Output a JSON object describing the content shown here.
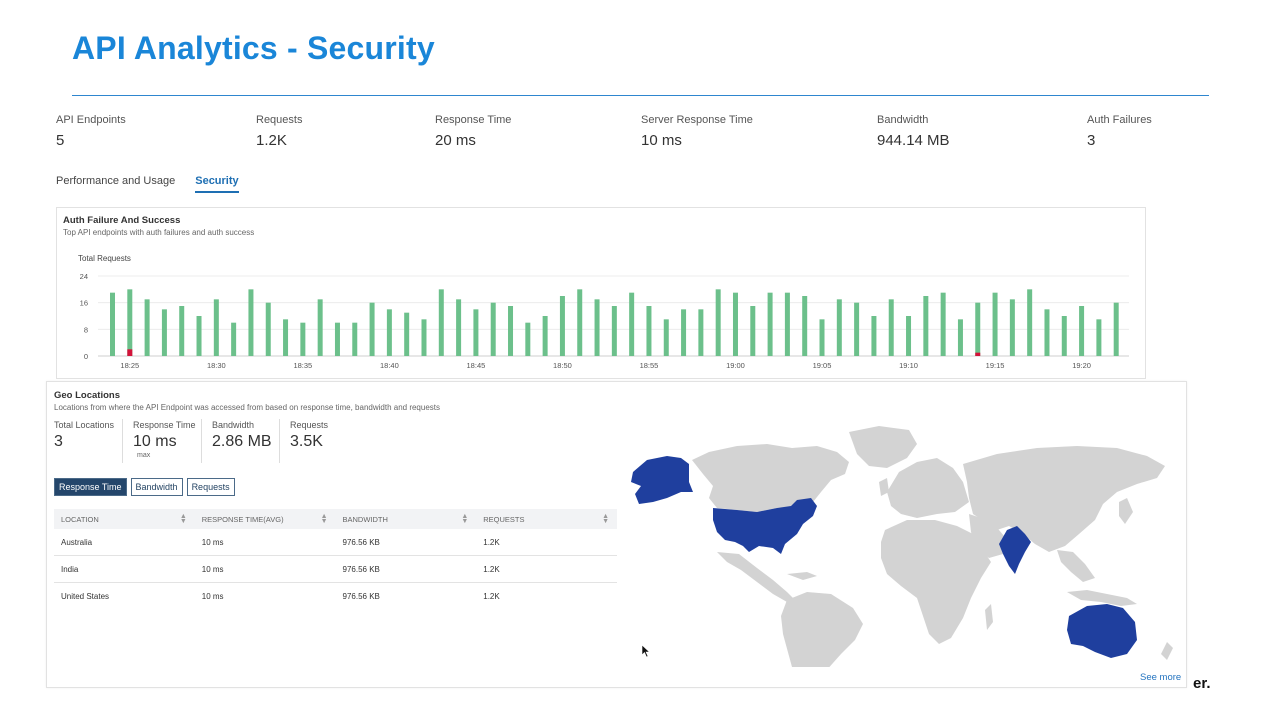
{
  "page": {
    "title": "API Analytics - Security"
  },
  "metrics": [
    {
      "label": "API Endpoints",
      "value": "5"
    },
    {
      "label": "Requests",
      "value": "1.2K"
    },
    {
      "label": "Response Time",
      "value": "20 ms"
    },
    {
      "label": "Server Response Time",
      "value": "10 ms"
    },
    {
      "label": "Bandwidth",
      "value": "944.14 MB"
    },
    {
      "label": "Auth Failures",
      "value": "3"
    }
  ],
  "tabs": [
    {
      "label": "Performance and Usage",
      "active": false
    },
    {
      "label": "Security",
      "active": true
    }
  ],
  "auth_chart": {
    "title": "Auth Failure And Success",
    "subtitle": "Top API endpoints with auth failures and auth success",
    "ylabel": "Total Requests"
  },
  "chart_data": {
    "type": "bar",
    "stacked": true,
    "ylim": [
      0,
      24
    ],
    "yticks": [
      0,
      8,
      16,
      24
    ],
    "xtick_labels": [
      "18:25",
      "18:30",
      "18:35",
      "18:40",
      "18:45",
      "18:50",
      "18:55",
      "19:00",
      "19:05",
      "19:10",
      "19:15",
      "19:20"
    ],
    "bar_interval_minutes": 1,
    "first_bar_time": "18:24",
    "series": [
      {
        "key": "success",
        "color": "#6cc08b",
        "values": [
          19,
          20,
          17,
          14,
          15,
          12,
          17,
          10,
          20,
          16,
          11,
          10,
          17,
          10,
          10,
          16,
          14,
          13,
          11,
          20,
          17,
          14,
          16,
          15,
          10,
          12,
          18,
          20,
          17,
          15,
          19,
          15,
          11,
          14,
          14,
          20,
          19,
          15,
          19,
          19,
          18,
          11,
          17,
          16,
          12,
          17,
          12,
          18,
          19,
          11,
          16,
          19,
          17,
          20,
          14,
          12,
          15,
          11,
          16
        ]
      },
      {
        "key": "failure",
        "color": "#d3133a",
        "values": [
          0,
          2,
          0,
          0,
          0,
          0,
          0,
          0,
          0,
          0,
          0,
          0,
          0,
          0,
          0,
          0,
          0,
          0,
          0,
          0,
          0,
          0,
          0,
          0,
          0,
          0,
          0,
          0,
          0,
          0,
          0,
          0,
          0,
          0,
          0,
          0,
          0,
          0,
          0,
          0,
          0,
          0,
          0,
          0,
          0,
          0,
          0,
          0,
          0,
          0,
          1,
          0,
          0,
          0,
          0,
          0,
          0,
          0,
          0
        ]
      }
    ]
  },
  "geo": {
    "title": "Geo Locations",
    "subtitle": "Locations from where the API Endpoint was accessed from based on response time, bandwidth and requests",
    "stats": [
      {
        "label": "Total Locations",
        "value": "3",
        "note": ""
      },
      {
        "label": "Response Time",
        "value": "10 ms",
        "note": "max"
      },
      {
        "label": "Bandwidth",
        "value": "2.86 MB",
        "note": ""
      },
      {
        "label": "Requests",
        "value": "3.5K",
        "note": ""
      }
    ],
    "buttons": [
      {
        "label": "Response Time",
        "active": true
      },
      {
        "label": "Bandwidth",
        "active": false
      },
      {
        "label": "Requests",
        "active": false
      }
    ],
    "table": {
      "columns": [
        "LOCATION",
        "RESPONSE TIME(AVG)",
        "BANDWIDTH",
        "REQUESTS"
      ],
      "rows": [
        [
          "Australia",
          "10 ms",
          "976.56 KB",
          "1.2K"
        ],
        [
          "India",
          "10 ms",
          "976.56 KB",
          "1.2K"
        ],
        [
          "United States",
          "10 ms",
          "976.56 KB",
          "1.2K"
        ]
      ]
    },
    "map": {
      "land_color": "#d3d3d3",
      "highlight_color": "#1f3f9e",
      "highlighted_countries": [
        "Alaska",
        "United States",
        "India",
        "Australia"
      ]
    },
    "see_more": "See more"
  },
  "stray_text": "er."
}
